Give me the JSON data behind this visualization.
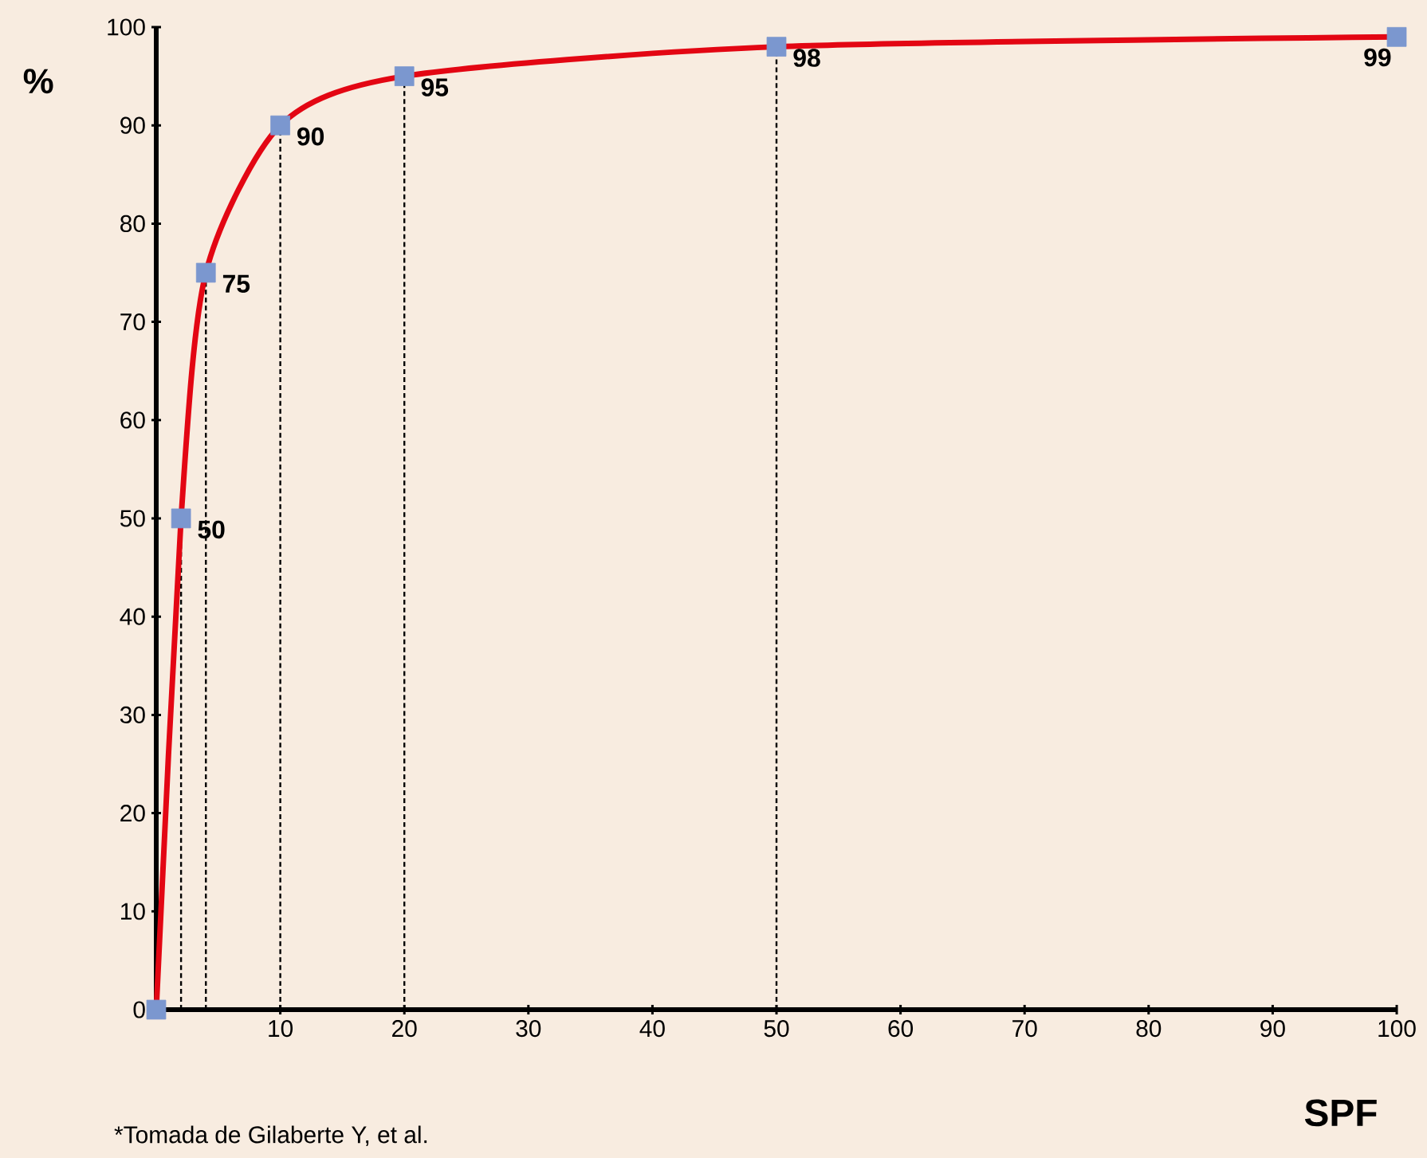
{
  "chart_data": {
    "type": "line",
    "xlabel": "SPF",
    "ylabel": "%",
    "annotations": [
      "*Tomada de Gilaberte Y, et al."
    ],
    "x": [
      0,
      2,
      4,
      10,
      20,
      50,
      100
    ],
    "series": [
      {
        "color": "#e30613",
        "values": [
          0,
          50,
          75,
          90,
          95,
          98,
          99
        ],
        "value_labels": [
          null,
          "50",
          "75",
          "90",
          "95",
          "98",
          "99"
        ]
      }
    ],
    "xlim": [
      0,
      100
    ],
    "ylim": [
      0,
      100
    ],
    "xticks": [
      10,
      20,
      30,
      40,
      50,
      60,
      70,
      80,
      90,
      100
    ],
    "yticks": [
      0,
      10,
      20,
      30,
      40,
      50,
      60,
      70,
      80,
      90,
      100
    ],
    "marker": "square",
    "grid": false,
    "ref_lines": [
      {
        "axis": "x",
        "value": 2,
        "line_style": "dashed",
        "color": "#000000"
      },
      {
        "axis": "x",
        "value": 4,
        "line_style": "dashed",
        "color": "#000000"
      },
      {
        "axis": "x",
        "value": 10,
        "line_style": "dashed",
        "color": "#000000"
      },
      {
        "axis": "x",
        "value": 20,
        "line_style": "dashed",
        "color": "#000000"
      },
      {
        "axis": "x",
        "value": 50,
        "line_style": "dashed",
        "color": "#000000"
      }
    ]
  }
}
